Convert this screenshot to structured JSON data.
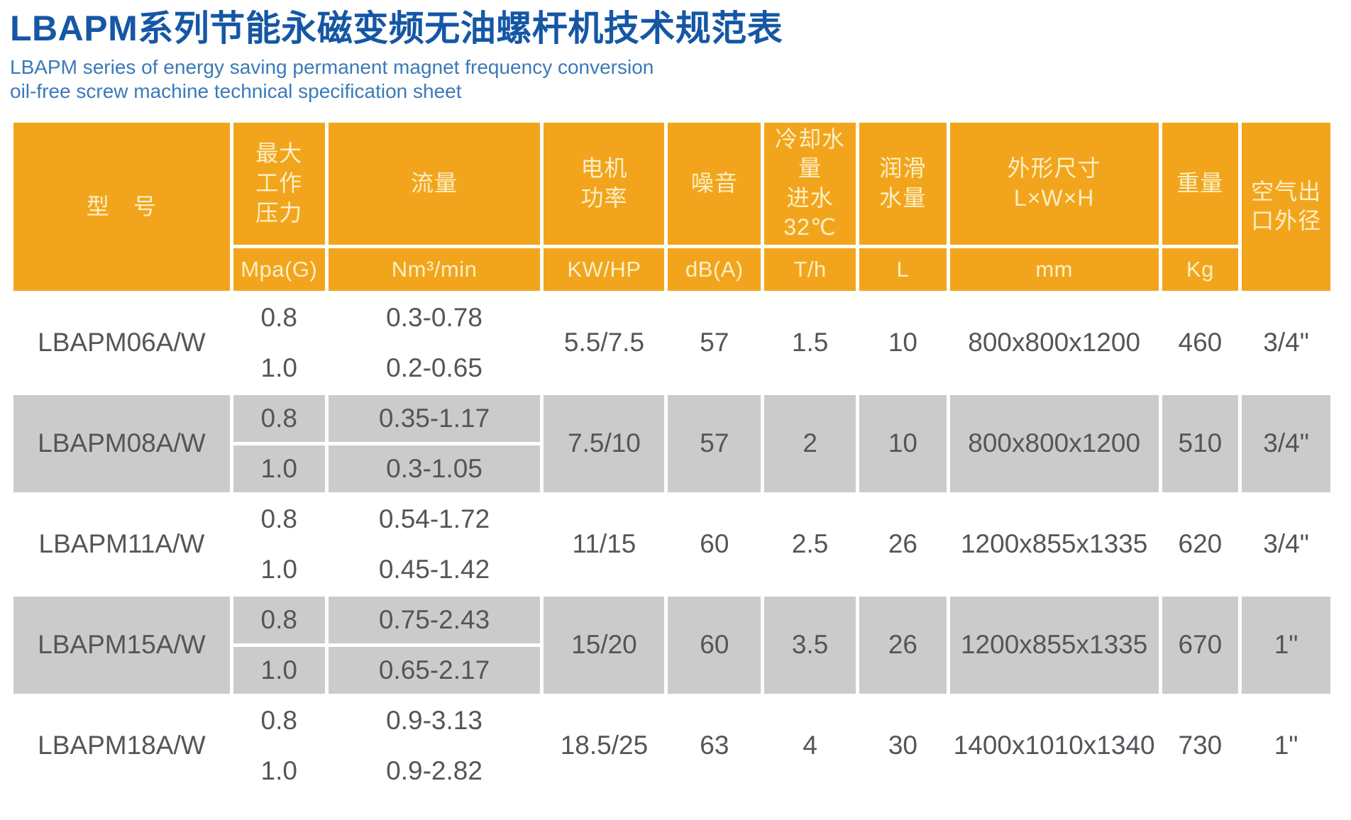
{
  "page": {
    "title": "LBAPM系列节能永磁变频无油螺杆机技术规范表",
    "subtitle": "LBAPM series of energy saving permanent magnet frequency conversion\noil-free screw machine technical specification sheet"
  },
  "colors": {
    "header_bg": "#F2A51C",
    "header_text": "#FBEFC6",
    "gray_row_bg": "#CBCBCB",
    "title_blue": "#1557A5",
    "subtitle_blue": "#3A7AB9",
    "data_text": "#54555A"
  },
  "table": {
    "headers": {
      "model": "型　号",
      "pressure": "最大\n工作\n压力",
      "flow": "流量",
      "power": "电机\n功率",
      "noise": "噪音",
      "cooling": "冷却水量\n进水32℃",
      "lube": "润滑\n水量",
      "dims": "外形尺寸\nL×W×H",
      "weight": "重量",
      "air": "空气出\n口外径"
    },
    "units": {
      "pressure": "Mpa(G)",
      "flow": "Nm³/min",
      "power": "KW/HP",
      "noise": "dB(A)",
      "cooling": "T/h",
      "lube": "L",
      "dims": "mm",
      "weight": "Kg"
    },
    "rows": [
      {
        "model": "LBAPM06A/W",
        "p1": "0.8",
        "f1": "0.3-0.78",
        "p2": "1.0",
        "f2": "0.2-0.65",
        "power": "5.5/7.5",
        "noise": "57",
        "cooling": "1.5",
        "lube": "10",
        "dims": "800x800x1200",
        "weight": "460",
        "air": "3/4\""
      },
      {
        "model": "LBAPM08A/W",
        "p1": "0.8",
        "f1": "0.35-1.17",
        "p2": "1.0",
        "f2": "0.3-1.05",
        "power": "7.5/10",
        "noise": "57",
        "cooling": "2",
        "lube": "10",
        "dims": "800x800x1200",
        "weight": "510",
        "air": "3/4\""
      },
      {
        "model": "LBAPM11A/W",
        "p1": "0.8",
        "f1": "0.54-1.72",
        "p2": "1.0",
        "f2": "0.45-1.42",
        "power": "11/15",
        "noise": "60",
        "cooling": "2.5",
        "lube": "26",
        "dims": "1200x855x1335",
        "weight": "620",
        "air": "3/4\""
      },
      {
        "model": "LBAPM15A/W",
        "p1": "0.8",
        "f1": "0.75-2.43",
        "p2": "1.0",
        "f2": "0.65-2.17",
        "power": "15/20",
        "noise": "60",
        "cooling": "3.5",
        "lube": "26",
        "dims": "1200x855x1335",
        "weight": "670",
        "air": "1\""
      },
      {
        "model": "LBAPM18A/W",
        "p1": "0.8",
        "f1": "0.9-3.13",
        "p2": "1.0",
        "f2": "0.9-2.82",
        "power": "18.5/25",
        "noise": "63",
        "cooling": "4",
        "lube": "30",
        "dims": "1400x1010x1340",
        "weight": "730",
        "air": "1\""
      }
    ]
  }
}
